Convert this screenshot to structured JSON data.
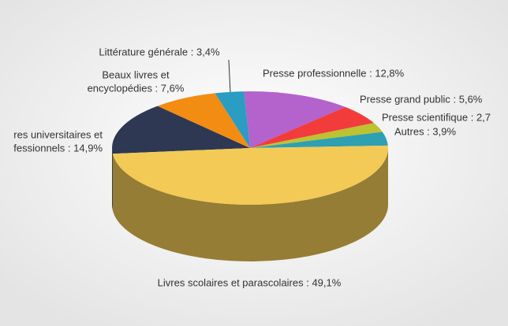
{
  "chart_data": {
    "type": "pie3d",
    "labels": [
      [
        "res universitaires et",
        "fessionnels : 14,9%"
      ],
      [
        "Beaux livres et",
        "encyclopédies : 7,6%"
      ],
      [
        "Littérature générale : 3,4%"
      ],
      [
        "Presse professionnelle : 12,8%"
      ],
      [
        "Presse grand public : 5,6%"
      ],
      [
        "Presse scientifique : 2,7"
      ],
      [
        "Autres : 3,9%"
      ],
      [
        "Livres scolaires et parascolaires : 49,1%"
      ]
    ],
    "values": [
      14.9,
      7.6,
      3.4,
      12.8,
      5.6,
      2.7,
      3.9,
      49.1
    ],
    "colors": [
      "#2e3852",
      "#f28c12",
      "#2b9cc2",
      "#b462cc",
      "#f23c3c",
      "#bcc232",
      "#2f9fb2",
      "#f2ca55"
    ]
  }
}
